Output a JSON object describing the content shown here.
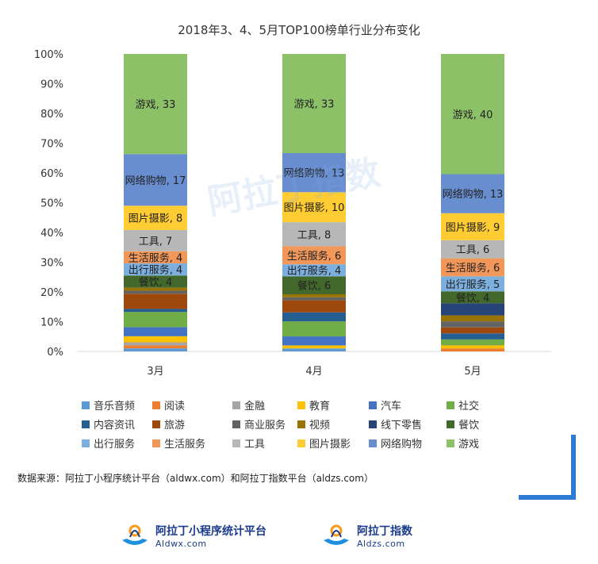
{
  "chart_data": {
    "type": "stacked-bar-100",
    "title": "2018年3、4、5月TOP100榜单行业分布变化",
    "categories": [
      "3月",
      "4月",
      "5月"
    ],
    "y_ticks": [
      "0%",
      "10%",
      "20%",
      "30%",
      "40%",
      "50%",
      "60%",
      "70%",
      "80%",
      "90%",
      "100%"
    ],
    "ylim": [
      0,
      100
    ],
    "series": [
      {
        "name": "音乐音频",
        "color": "#5b9bd5",
        "values": [
          1,
          1,
          0
        ]
      },
      {
        "name": "阅读",
        "color": "#ed7d31",
        "values": [
          1,
          0,
          1
        ]
      },
      {
        "name": "金融",
        "color": "#a5a5a5",
        "values": [
          1,
          0,
          0
        ]
      },
      {
        "name": "教育",
        "color": "#ffc000",
        "values": [
          2,
          1,
          1
        ]
      },
      {
        "name": "汽车",
        "color": "#4472c4",
        "values": [
          3,
          3,
          0
        ]
      },
      {
        "name": "社交",
        "color": "#70ad47",
        "values": [
          5,
          5,
          2
        ]
      },
      {
        "name": "内容资讯",
        "color": "#255e91",
        "values": [
          1,
          3,
          2
        ]
      },
      {
        "name": "旅游",
        "color": "#9e480e",
        "values": [
          5,
          4,
          2
        ]
      },
      {
        "name": "商业服务",
        "color": "#636363",
        "values": [
          1,
          1,
          2
        ]
      },
      {
        "name": "视频",
        "color": "#997300",
        "values": [
          1,
          1,
          2
        ]
      },
      {
        "name": "线下零售",
        "color": "#264478",
        "values": [
          0,
          0,
          4
        ]
      },
      {
        "name": "餐饮",
        "color": "#43682b",
        "values": [
          4,
          6,
          4
        ]
      },
      {
        "name": "出行服务",
        "color": "#7cafdd",
        "values": [
          4,
          4,
          5
        ]
      },
      {
        "name": "生活服务",
        "color": "#f1975a",
        "values": [
          4,
          6,
          6
        ]
      },
      {
        "name": "工具",
        "color": "#b7b7b7",
        "values": [
          7,
          8,
          6
        ]
      },
      {
        "name": "图片摄影",
        "color": "#ffcd33",
        "values": [
          8,
          10,
          9
        ]
      },
      {
        "name": "网络购物",
        "color": "#698ed0",
        "values": [
          17,
          13,
          13
        ]
      },
      {
        "name": "游戏",
        "color": "#8cc168",
        "values": [
          33,
          33,
          40
        ]
      }
    ],
    "data_labels": [
      [
        "游戏, 33",
        "网络购物, 17",
        "图片摄影, 8",
        "工具, 7",
        "生活服务, 4",
        "出行服务, 4",
        "餐饮, 4"
      ],
      [
        "游戏, 33",
        "网络购物, 13",
        "图片摄影, 10",
        "工具, 8",
        "生活服务, 6",
        "出行服务, 4",
        "餐饮, 6"
      ],
      [
        "游戏, 40",
        "网络购物, 13",
        "图片摄影, 9",
        "工具, 6",
        "生活服务, 6",
        "出行服务, 5",
        "餐饮, 4"
      ]
    ],
    "legend_position": "bottom"
  },
  "source_text": "数据来源：阿拉丁小程序统计平台（aldwx.com）和阿拉丁指数平台（aldzs.com）",
  "logos": [
    {
      "cn": "阿拉丁小程序统计平台",
      "en": "Aldwx.com"
    },
    {
      "cn": "阿拉丁指数",
      "en": "Aldzs.com"
    }
  ],
  "watermark": "阿拉丁指数",
  "colors": {
    "accent": "#2e7bd6"
  }
}
